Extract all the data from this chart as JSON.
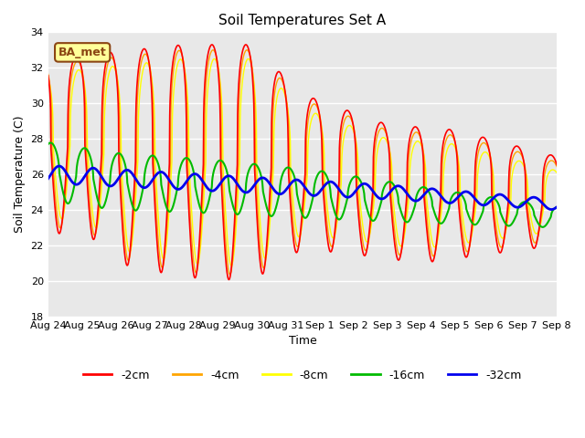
{
  "title": "Soil Temperatures Set A",
  "xlabel": "Time",
  "ylabel": "Soil Temperature (C)",
  "ylim": [
    18,
    34
  ],
  "yticks": [
    18,
    20,
    22,
    24,
    26,
    28,
    30,
    32,
    34
  ],
  "colors": {
    "-2cm": "#FF0000",
    "-4cm": "#FFA500",
    "-8cm": "#FFFF00",
    "-16cm": "#00BB00",
    "-32cm": "#0000EE"
  },
  "legend_label": "BA_met",
  "legend_box_facecolor": "#FFFF99",
  "legend_box_edgecolor": "#8B4513",
  "background_color": "#E8E8E8",
  "tick_labels": [
    "Aug 24",
    "Aug 25",
    "Aug 26",
    "Aug 27",
    "Aug 28",
    "Aug 29",
    "Aug 30",
    "Aug 31",
    "Sep 1",
    "Sep 2",
    "Sep 3",
    "Sep 4",
    "Sep 5",
    "Sep 6",
    "Sep 7",
    "Sep 8"
  ]
}
